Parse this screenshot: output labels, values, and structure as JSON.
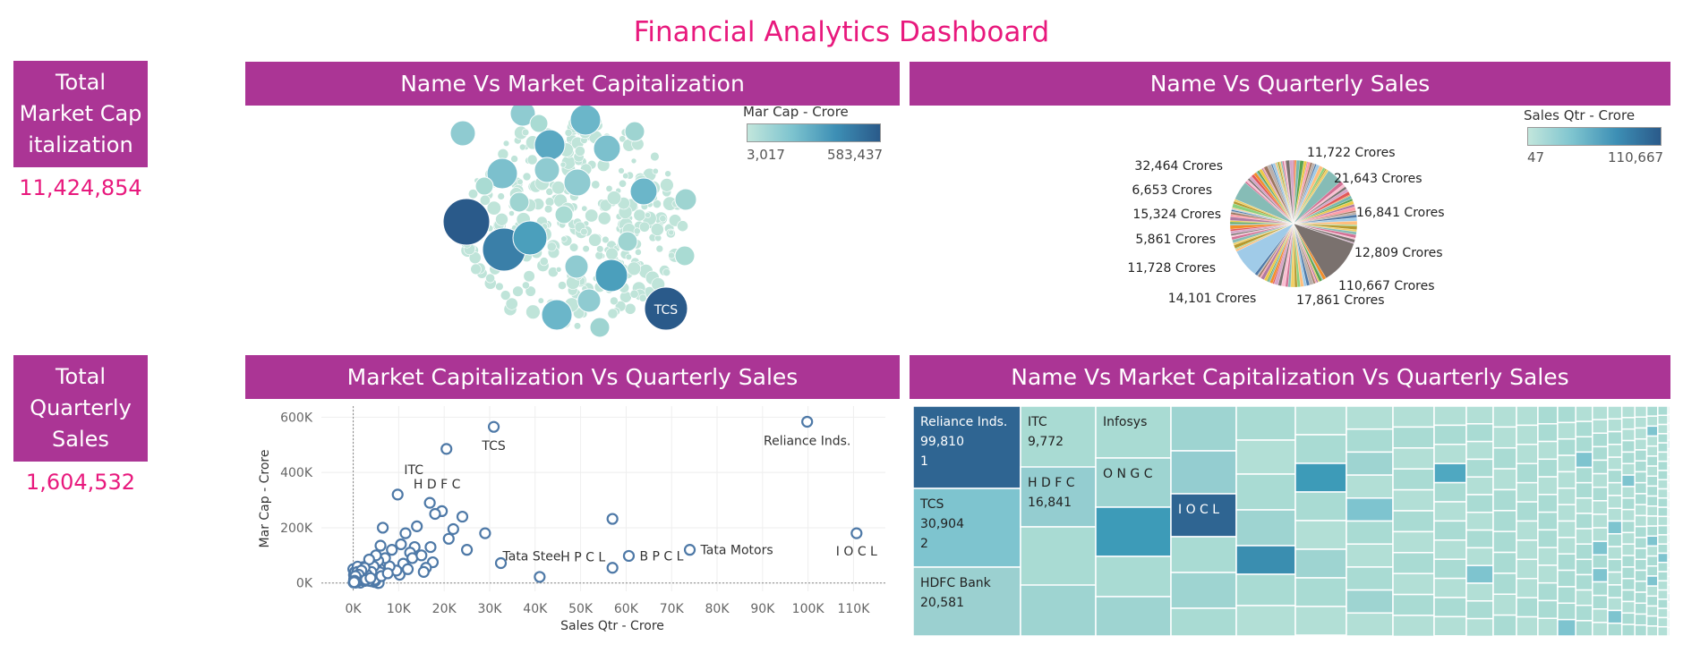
{
  "dashboard_title": "Financial Analytics Dashboard",
  "kpis": {
    "market_cap": {
      "label": "Total\nMarket Cap\nitalization",
      "value": "11,424,854"
    },
    "quarterly_sales": {
      "label": "Total\nQuarterly\nSales",
      "value": "1,604,532"
    }
  },
  "panels": {
    "bubble": {
      "title": "Name Vs Market Capitalization"
    },
    "pie": {
      "title": "Name Vs Quarterly Sales"
    },
    "scatter": {
      "title": "Market Capitalization Vs Quarterly Sales"
    },
    "treemap": {
      "title": "Name Vs Market Capitalization Vs Quarterly Sales"
    }
  },
  "legends": {
    "mar_cap": {
      "title": "Mar Cap - Crore",
      "min": "3,017",
      "max": "583,437"
    },
    "sales": {
      "title": "Sales Qtr - Crore",
      "min": "47",
      "max": "110,667"
    }
  },
  "colors": {
    "header": "#ab3595",
    "accent": "#e8197d",
    "scatter_point": "#4e79a7",
    "scale_low": "#c2e6dc",
    "scale_high": "#2a5a8a"
  },
  "chart_data": [
    {
      "type": "bubble",
      "title": "Name Vs Market Capitalization",
      "size_color_measure": "Mar Cap - Crore",
      "labels": [
        "TCS"
      ]
    },
    {
      "type": "pie",
      "title": "Name Vs Quarterly Sales",
      "measure": "Sales Qtr - Crore",
      "slice_labels": [
        "11,722 Crores",
        "21,643 Crores",
        "16,841 Crores",
        "12,809 Crores",
        "110,667 Crores",
        "17,861 Crores",
        "14,101 Crores",
        "11,728 Crores",
        "5,861 Crores",
        "15,324 Crores",
        "6,653 Crores",
        "32,464 Crores"
      ]
    },
    {
      "type": "scatter",
      "title": "Market Capitalization Vs Quarterly Sales",
      "xlabel": "Sales Qtr - Crore",
      "ylabel": "Mar Cap - Crore",
      "xlim": [
        -7000,
        117000
      ],
      "ylim": [
        -30000,
        640000
      ],
      "xticks": [
        "0K",
        "10K",
        "20K",
        "30K",
        "40K",
        "50K",
        "60K",
        "70K",
        "80K",
        "90K",
        "100K",
        "110K"
      ],
      "yticks": [
        "0K",
        "200K",
        "400K",
        "600K"
      ],
      "grid": true,
      "labeled_points": [
        {
          "name": "Reliance Inds.",
          "x": 99810,
          "y": 583437
        },
        {
          "name": "TCS",
          "x": 30904,
          "y": 565000
        },
        {
          "name": "ITC",
          "x": 9772,
          "y": 320000
        },
        {
          "name": "H D F C",
          "x": 16841,
          "y": 290000
        },
        {
          "name": "Tata Steel",
          "x": 32464,
          "y": 72000
        },
        {
          "name": "H P C L",
          "x": 57000,
          "y": 55000
        },
        {
          "name": "B P C L",
          "x": 60600,
          "y": 98000
        },
        {
          "name": "Tata Motors",
          "x": 74000,
          "y": 120000
        },
        {
          "name": "I O C L",
          "x": 110667,
          "y": 180000
        }
      ],
      "other_points": [
        {
          "x": 20500,
          "y": 485000
        },
        {
          "x": 57000,
          "y": 232000
        },
        {
          "x": 41000,
          "y": 22000
        },
        {
          "x": 29000,
          "y": 180000
        },
        {
          "x": 24000,
          "y": 240000
        },
        {
          "x": 22000,
          "y": 195000
        },
        {
          "x": 21000,
          "y": 160000
        },
        {
          "x": 19500,
          "y": 260000
        },
        {
          "x": 18000,
          "y": 250000
        },
        {
          "x": 17500,
          "y": 75000
        },
        {
          "x": 16000,
          "y": 55000
        },
        {
          "x": 15500,
          "y": 40000
        },
        {
          "x": 14000,
          "y": 205000
        },
        {
          "x": 13500,
          "y": 130000
        },
        {
          "x": 12500,
          "y": 110000
        },
        {
          "x": 11500,
          "y": 180000
        },
        {
          "x": 11000,
          "y": 70000
        },
        {
          "x": 10200,
          "y": 30000
        },
        {
          "x": 9500,
          "y": 45000
        },
        {
          "x": 8500,
          "y": 120000
        },
        {
          "x": 8000,
          "y": 60000
        },
        {
          "x": 7000,
          "y": 90000
        },
        {
          "x": 6500,
          "y": 200000
        },
        {
          "x": 6000,
          "y": 135000
        },
        {
          "x": 5500,
          "y": 80000
        },
        {
          "x": 5000,
          "y": 100000
        },
        {
          "x": 4500,
          "y": 60000
        },
        {
          "x": 4000,
          "y": 40000
        },
        {
          "x": 3500,
          "y": 85000
        },
        {
          "x": 3000,
          "y": 30000
        },
        {
          "x": 2500,
          "y": 55000
        },
        {
          "x": 2200,
          "y": 20000
        },
        {
          "x": 1800,
          "y": 45000
        },
        {
          "x": 1500,
          "y": 10000
        },
        {
          "x": 1200,
          "y": 30000
        },
        {
          "x": 900,
          "y": 15000
        },
        {
          "x": 700,
          "y": 5000
        },
        {
          "x": 500,
          "y": 25000
        },
        {
          "x": 300,
          "y": 8000
        },
        {
          "x": 200,
          "y": 3000
        },
        {
          "x": 2800,
          "y": 12000
        },
        {
          "x": 3800,
          "y": 18000
        },
        {
          "x": 6200,
          "y": 25000
        },
        {
          "x": 7600,
          "y": 35000
        },
        {
          "x": 10500,
          "y": 140000
        },
        {
          "x": 12000,
          "y": 50000
        },
        {
          "x": 13000,
          "y": 90000
        },
        {
          "x": 15000,
          "y": 100000
        },
        {
          "x": 17000,
          "y": 130000
        },
        {
          "x": 25000,
          "y": 120000
        }
      ]
    },
    {
      "type": "treemap",
      "title": "Name Vs Market Capitalization Vs Quarterly Sales",
      "size_measure": "Mar Cap - Crore",
      "color_measure": "Sales Qtr - Crore",
      "cells": [
        {
          "lines": [
            "Reliance Inds.",
            "99,810",
            "1"
          ],
          "color": "#2f6592"
        },
        {
          "lines": [
            "TCS",
            "30,904",
            "2"
          ],
          "color": "#7ec4cf"
        },
        {
          "lines": [
            "HDFC Bank",
            "20,581"
          ],
          "color": "#9bd0d0"
        },
        {
          "lines": [
            "ITC",
            "9,772"
          ],
          "color": "#a9dbd3"
        },
        {
          "lines": [
            "H D F C",
            "16,841"
          ],
          "color": "#94cdd0"
        },
        {
          "lines": [
            "Infosys"
          ],
          "color": "#a9dbd3"
        },
        {
          "lines": [
            "O N G C"
          ],
          "color": "#9ed4d1"
        },
        {
          "lines": [
            "I O C L"
          ],
          "color": "#2f6592"
        }
      ]
    }
  ]
}
